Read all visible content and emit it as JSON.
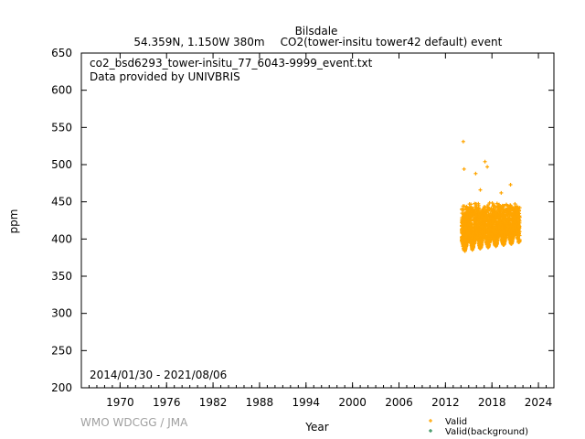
{
  "header": {
    "station": "Bilsdale",
    "location": "54.359N, 1.150W 380m",
    "species_info": "CO2(tower-insitu tower42 default) event"
  },
  "file_info": {
    "filename": "co2_bsd6293_tower-insitu_77_6043-9999_event.txt",
    "provider": "Data provided by UNIVBRIS"
  },
  "date_range": "2014/01/30 - 2021/08/06",
  "credit": "WMO WDCGG / JMA",
  "colors": {
    "valid": "#ffa500",
    "valid_background": "#2e8b57",
    "credit_text": "#a0a0a0",
    "axis": "#000000"
  },
  "chart_data": {
    "type": "scatter",
    "xlabel": "Year",
    "ylabel": "ppm",
    "xlim": [
      1965,
      2026
    ],
    "ylim": [
      200,
      650
    ],
    "xticks": [
      "1970",
      "1976",
      "1982",
      "1988",
      "1994",
      "2000",
      "2006",
      "2012",
      "2018",
      "2024"
    ],
    "yticks": [
      "200",
      "250",
      "300",
      "350",
      "400",
      "450",
      "500",
      "550",
      "600",
      "650"
    ],
    "grid": false,
    "legend_position": "bottom-right",
    "series": [
      {
        "name": "Valid",
        "color": "#ffa500",
        "marker": "plus",
        "x_range": [
          2014.08,
          2021.6
        ],
        "baseline_min": 383,
        "baseline_max": 410,
        "typical_max": 450,
        "outliers": [
          {
            "x": 2014.3,
            "y": 531
          },
          {
            "x": 2014.4,
            "y": 494
          },
          {
            "x": 2015.9,
            "y": 488
          },
          {
            "x": 2017.1,
            "y": 504
          },
          {
            "x": 2017.4,
            "y": 497
          },
          {
            "x": 2016.5,
            "y": 466
          },
          {
            "x": 2020.4,
            "y": 473
          },
          {
            "x": 2019.2,
            "y": 462
          }
        ]
      },
      {
        "name": "Valid(background)",
        "color": "#2e8b57",
        "marker": "plus",
        "points": []
      }
    ]
  }
}
